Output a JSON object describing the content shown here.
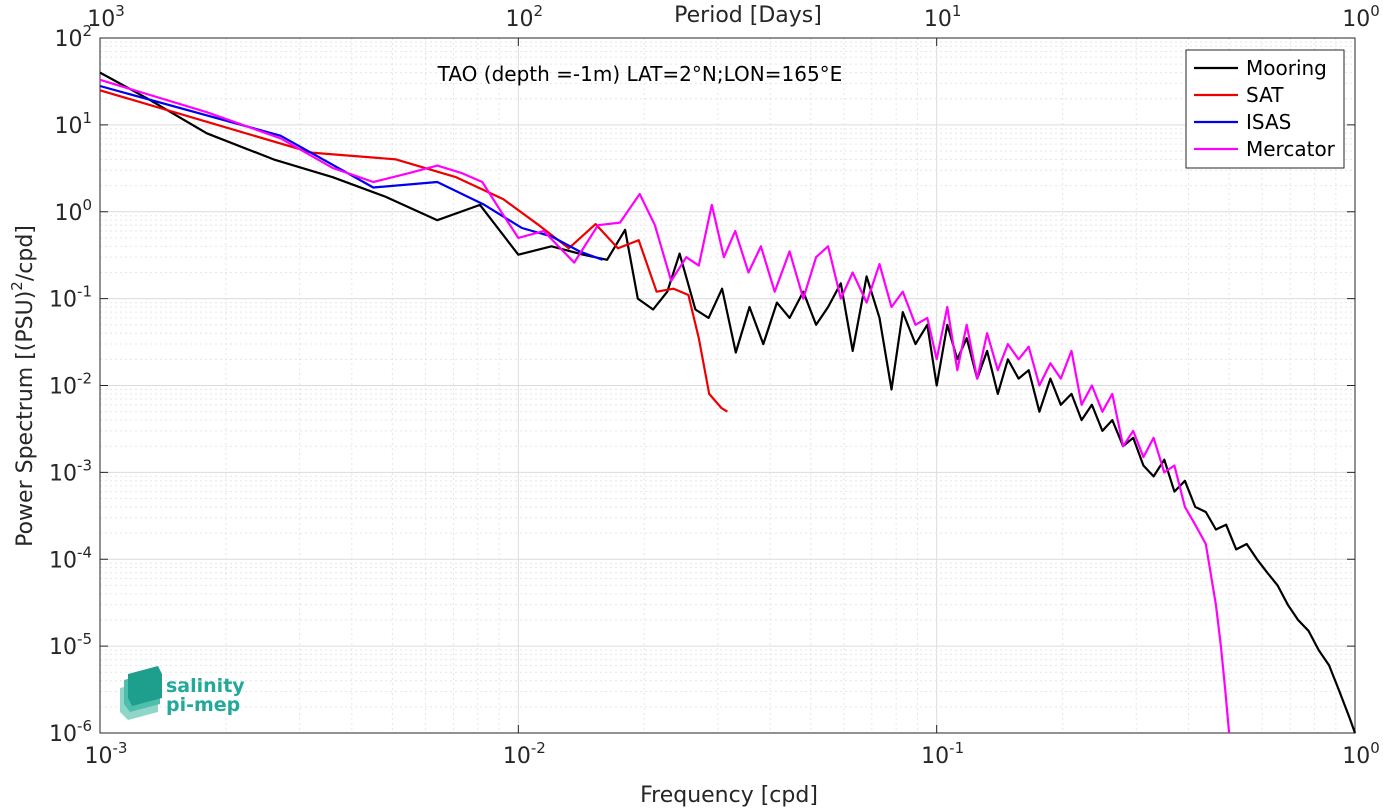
{
  "chart_data": {
    "type": "line",
    "title": "TAO (depth =-1m) LAT=2°N;LON=165°E",
    "xlabel": "Frequency [cpd]",
    "ylabel": "Power Spectrum [(PSU)",
    "ylabel_sup": "2",
    "ylabel_tail": "/cpd]",
    "top_xlabel": "Period [Days]",
    "xscale": "log",
    "yscale": "log",
    "xlim": [
      0.001,
      1
    ],
    "ylim": [
      1e-06,
      100
    ],
    "grid": true,
    "legend_position": "top-right",
    "x_ticks": [
      {
        "base": "10",
        "exp": "-3",
        "value": 0.001
      },
      {
        "base": "10",
        "exp": "-2",
        "value": 0.01
      },
      {
        "base": "10",
        "exp": "-1",
        "value": 0.1
      },
      {
        "base": "10",
        "exp": "0",
        "value": 1
      }
    ],
    "y_ticks": [
      {
        "base": "10",
        "exp": "-6",
        "value": 1e-06
      },
      {
        "base": "10",
        "exp": "-5",
        "value": 1e-05
      },
      {
        "base": "10",
        "exp": "-4",
        "value": 0.0001
      },
      {
        "base": "10",
        "exp": "-3",
        "value": 0.001
      },
      {
        "base": "10",
        "exp": "-2",
        "value": 0.01
      },
      {
        "base": "10",
        "exp": "-1",
        "value": 0.1
      },
      {
        "base": "10",
        "exp": "0",
        "value": 1
      },
      {
        "base": "10",
        "exp": "1",
        "value": 10
      },
      {
        "base": "10",
        "exp": "2",
        "value": 100
      }
    ],
    "top_ticks": [
      {
        "base": "10",
        "exp": "3",
        "value": 1000
      },
      {
        "base": "10",
        "exp": "2",
        "value": 100
      },
      {
        "base": "10",
        "exp": "1",
        "value": 10
      },
      {
        "base": "10",
        "exp": "0",
        "value": 1
      }
    ],
    "series": [
      {
        "name": "Mooring",
        "color": "#000000",
        "x": [
          0.001,
          0.0013,
          0.0018,
          0.0026,
          0.0036,
          0.0048,
          0.0064,
          0.0081,
          0.01,
          0.012,
          0.0143,
          0.0163,
          0.018,
          0.0193,
          0.021,
          0.0227,
          0.0243,
          0.0265,
          0.0285,
          0.0307,
          0.0331,
          0.0357,
          0.0385,
          0.0415,
          0.0445,
          0.048,
          0.0515,
          0.055,
          0.059,
          0.063,
          0.068,
          0.073,
          0.078,
          0.083,
          0.089,
          0.095,
          0.1,
          0.106,
          0.112,
          0.118,
          0.125,
          0.132,
          0.14,
          0.148,
          0.157,
          0.166,
          0.176,
          0.187,
          0.198,
          0.21,
          0.222,
          0.235,
          0.249,
          0.263,
          0.279,
          0.295,
          0.312,
          0.33,
          0.35,
          0.37,
          0.392,
          0.415,
          0.44,
          0.465,
          0.492,
          0.52,
          0.551,
          0.583,
          0.617,
          0.653,
          0.691,
          0.731,
          0.774,
          0.819,
          0.867,
          0.918,
          0.97,
          1.0
        ],
        "y": [
          40,
          20,
          8,
          4,
          2.5,
          1.5,
          0.8,
          1.2,
          0.32,
          0.4,
          0.32,
          0.28,
          0.62,
          0.1,
          0.075,
          0.12,
          0.33,
          0.075,
          0.06,
          0.13,
          0.024,
          0.08,
          0.03,
          0.09,
          0.06,
          0.12,
          0.05,
          0.08,
          0.15,
          0.025,
          0.18,
          0.06,
          0.009,
          0.07,
          0.03,
          0.05,
          0.01,
          0.05,
          0.02,
          0.035,
          0.012,
          0.025,
          0.008,
          0.02,
          0.012,
          0.015,
          0.005,
          0.012,
          0.006,
          0.008,
          0.004,
          0.006,
          0.003,
          0.004,
          0.002,
          0.0025,
          0.0012,
          0.0009,
          0.0014,
          0.0006,
          0.0008,
          0.0004,
          0.00035,
          0.00022,
          0.00025,
          0.00013,
          0.00015,
          0.0001,
          7e-05,
          5e-05,
          3e-05,
          2e-05,
          1.5e-05,
          9e-06,
          6e-06,
          3e-06,
          1.5e-06,
          1e-06
        ]
      },
      {
        "name": "SAT",
        "color": "#ee0000",
        "x": [
          0.001,
          0.0032,
          0.0051,
          0.0071,
          0.0092,
          0.0112,
          0.0132,
          0.0153,
          0.0173,
          0.0194,
          0.0214,
          0.0235,
          0.0255,
          0.027,
          0.0286,
          0.0306,
          0.0316
        ],
        "y": [
          25,
          4.8,
          4.0,
          2.5,
          1.4,
          0.7,
          0.38,
          0.72,
          0.38,
          0.47,
          0.12,
          0.13,
          0.11,
          0.035,
          0.008,
          0.0055,
          0.005
        ]
      },
      {
        "name": "ISAS",
        "color": "#0000ee",
        "x": [
          0.001,
          0.0027,
          0.0045,
          0.0064,
          0.0083,
          0.0102,
          0.012,
          0.014,
          0.0159
        ],
        "y": [
          28,
          7.5,
          1.9,
          2.2,
          1.2,
          0.65,
          0.52,
          0.35,
          0.28
        ]
      },
      {
        "name": "Mercator",
        "color": "#ff00ff",
        "x": [
          0.001,
          0.0018,
          0.0027,
          0.0036,
          0.0045,
          0.0055,
          0.0064,
          0.0073,
          0.0082,
          0.0091,
          0.01,
          0.0115,
          0.0136,
          0.0155,
          0.0175,
          0.0195,
          0.0212,
          0.0232,
          0.0252,
          0.027,
          0.029,
          0.031,
          0.033,
          0.0355,
          0.038,
          0.041,
          0.0445,
          0.048,
          0.0515,
          0.055,
          0.059,
          0.063,
          0.068,
          0.073,
          0.078,
          0.083,
          0.089,
          0.095,
          0.1,
          0.106,
          0.112,
          0.118,
          0.125,
          0.132,
          0.14,
          0.148,
          0.157,
          0.166,
          0.176,
          0.187,
          0.198,
          0.21,
          0.222,
          0.235,
          0.249,
          0.263,
          0.279,
          0.295,
          0.312,
          0.33,
          0.35,
          0.37,
          0.392,
          0.415,
          0.44,
          0.465,
          0.478,
          0.49,
          0.5
        ],
        "y": [
          33,
          14,
          7,
          3.2,
          2.2,
          2.8,
          3.4,
          2.8,
          2.2,
          1.0,
          0.5,
          0.6,
          0.26,
          0.7,
          0.75,
          1.6,
          0.7,
          0.16,
          0.3,
          0.24,
          1.2,
          0.3,
          0.6,
          0.2,
          0.4,
          0.12,
          0.35,
          0.1,
          0.3,
          0.4,
          0.1,
          0.2,
          0.09,
          0.25,
          0.08,
          0.12,
          0.05,
          0.06,
          0.02,
          0.08,
          0.015,
          0.05,
          0.012,
          0.04,
          0.015,
          0.03,
          0.02,
          0.028,
          0.01,
          0.018,
          0.012,
          0.025,
          0.006,
          0.01,
          0.005,
          0.008,
          0.002,
          0.003,
          0.0015,
          0.0025,
          0.001,
          0.0012,
          0.0004,
          0.00025,
          0.00015,
          3e-05,
          1e-05,
          3e-06,
          1e-06
        ]
      }
    ]
  },
  "logo": {
    "line1": "salinity",
    "line2": "pi-mep"
  }
}
